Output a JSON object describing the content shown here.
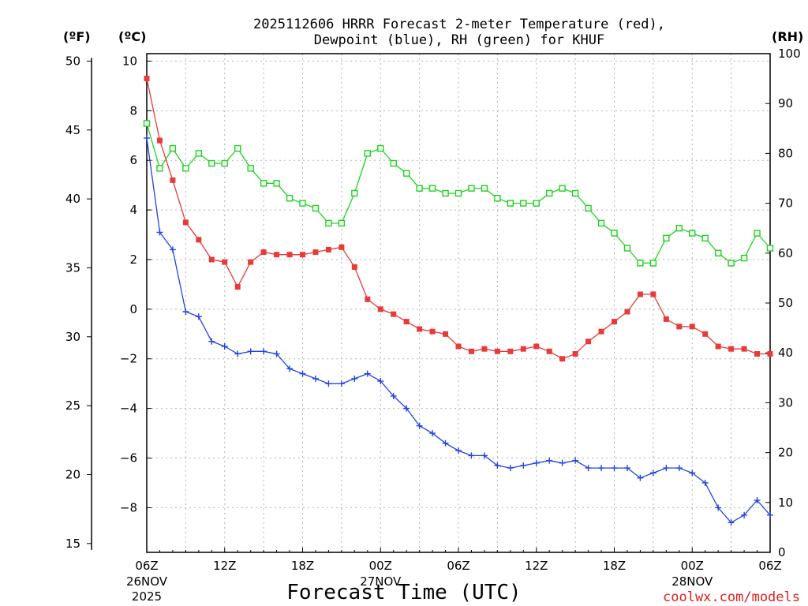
{
  "chart_data": {
    "type": "line",
    "title_lines": [
      "2025112606 HRRR Forecast 2-meter Temperature (red),",
      "Dewpoint (blue), RH (green) for KHUF"
    ],
    "xlabel": "Forecast Time (UTC)",
    "credit": "coolwx.com/models",
    "units": {
      "f": "(ºF)",
      "c": "(ºC)",
      "rh": "(RH)"
    },
    "x_tick_labels": [
      "06Z",
      "12Z",
      "18Z",
      "00Z",
      "06Z",
      "12Z",
      "18Z",
      "00Z",
      "06Z"
    ],
    "x_tick_hours": [
      0,
      6,
      12,
      18,
      24,
      30,
      36,
      42,
      48
    ],
    "date_labels": [
      {
        "hour": 0,
        "lines": [
          "26NOV",
          "2025"
        ]
      },
      {
        "hour": 18,
        "lines": [
          "27NOV"
        ]
      },
      {
        "hour": 42,
        "lines": [
          "28NOV"
        ]
      }
    ],
    "x_range_hours": [
      0,
      48
    ],
    "y_left_celsius_range": [
      -9.8,
      10.3
    ],
    "y_left_celsius_ticks": [
      -8,
      -6,
      -4,
      -2,
      0,
      2,
      4,
      6,
      8,
      10
    ],
    "y_left_fahrenheit_ticks": [
      15,
      20,
      25,
      30,
      35,
      40,
      45,
      50
    ],
    "y_right_rh_range": [
      0,
      100
    ],
    "y_right_rh_ticks": [
      0,
      10,
      20,
      30,
      40,
      50,
      60,
      70,
      80,
      90,
      100
    ],
    "colors": {
      "temperature": "#e83a3a",
      "dewpoint": "#2244e0",
      "rh": "#1fd21f",
      "credit": "#e02020"
    },
    "series": [
      {
        "name": "2-meter Temperature",
        "units": "degC",
        "marker": "filled-square",
        "values": [
          9.3,
          6.8,
          5.2,
          3.5,
          2.8,
          2.0,
          1.9,
          0.9,
          1.9,
          2.3,
          2.2,
          2.2,
          2.2,
          2.3,
          2.4,
          2.5,
          1.7,
          0.4,
          0.0,
          -0.2,
          -0.5,
          -0.8,
          -0.9,
          -1.0,
          -1.5,
          -1.7,
          -1.6,
          -1.7,
          -1.7,
          -1.6,
          -1.5,
          -1.7,
          -2.0,
          -1.8,
          -1.3,
          -0.9,
          -0.5,
          -0.1,
          0.6,
          0.6,
          -0.4,
          -0.7,
          -0.7,
          -1.0,
          -1.5,
          -1.6,
          -1.6,
          -1.8,
          -1.8
        ]
      },
      {
        "name": "Dewpoint",
        "units": "degC",
        "marker": "plus",
        "values": [
          6.9,
          3.1,
          2.4,
          -0.1,
          -0.3,
          -1.3,
          -1.5,
          -1.8,
          -1.7,
          -1.7,
          -1.8,
          -2.4,
          -2.6,
          -2.8,
          -3.0,
          -3.0,
          -2.8,
          -2.6,
          -2.9,
          -3.5,
          -4.0,
          -4.7,
          -5.0,
          -5.4,
          -5.7,
          -5.9,
          -5.9,
          -6.3,
          -6.4,
          -6.3,
          -6.2,
          -6.1,
          -6.2,
          -6.1,
          -6.4,
          -6.4,
          -6.4,
          -6.4,
          -6.8,
          -6.6,
          -6.4,
          -6.4,
          -6.6,
          -7.0,
          -8.0,
          -8.6,
          -8.3,
          -7.7,
          -8.3
        ]
      },
      {
        "name": "Relative Humidity",
        "units": "percent",
        "marker": "open-square",
        "values": [
          86,
          77,
          81,
          77,
          80,
          78,
          78,
          81,
          77,
          74,
          74,
          71,
          70,
          69,
          66,
          66,
          72,
          80,
          81,
          78,
          76,
          73,
          73,
          72,
          72,
          73,
          73,
          71,
          70,
          70,
          70,
          72,
          73,
          72,
          69,
          66,
          64,
          61,
          58,
          58,
          63,
          65,
          64,
          63,
          60,
          58,
          59,
          64,
          61
        ]
      }
    ]
  }
}
